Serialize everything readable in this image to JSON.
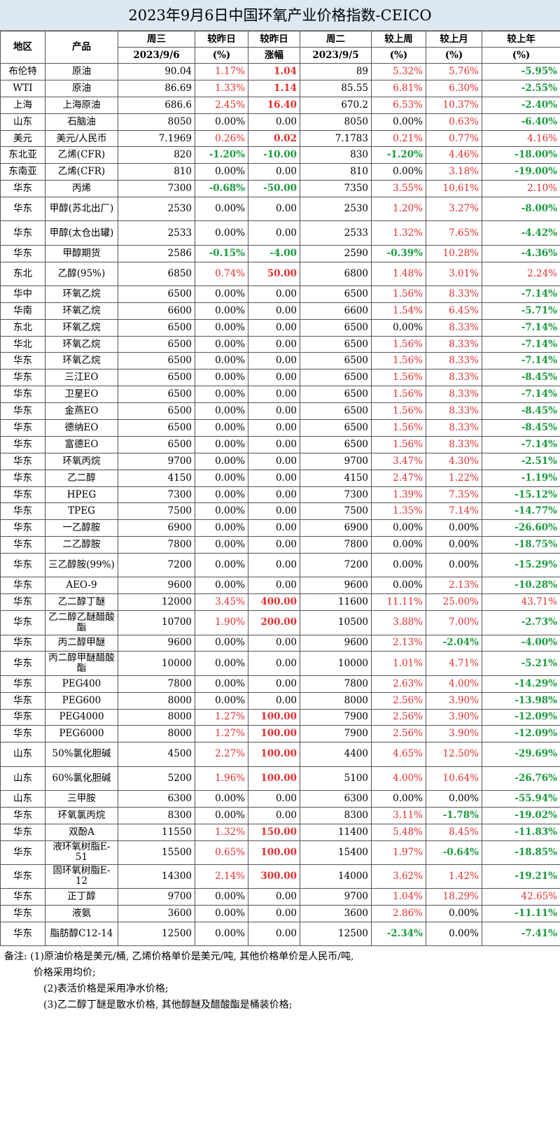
{
  "title": "2023年9月6日中国环氧产业价格指数-CEICO",
  "headers": {
    "region": "地区",
    "product": "产品",
    "wed": "周三",
    "wed_date": "2023/9/6",
    "chg_pct": "较昨日",
    "chg_pct_unit": "(%)",
    "chg_amt": "较昨日",
    "chg_amt_unit": "涨幅",
    "tue": "周二",
    "tue_date": "2023/9/5",
    "week": "较上周",
    "week_unit": "(%)",
    "month": "较上月",
    "month_unit": "(%)",
    "year": "较上年",
    "year_unit": "(%)"
  },
  "rows": [
    [
      "布伦特",
      "原油",
      "90.04",
      "1.17%",
      "1.04",
      "89",
      "5.32%",
      "5.76%",
      "-5.95%"
    ],
    [
      "WTI",
      "原油",
      "86.69",
      "1.33%",
      "1.14",
      "85.55",
      "6.81%",
      "6.30%",
      "-2.55%"
    ],
    [
      "上海",
      "上海原油",
      "686.6",
      "2.45%",
      "16.40",
      "670.2",
      "6.53%",
      "10.37%",
      "-2.40%"
    ],
    [
      "山东",
      "石脑油",
      "8050",
      "0.00%",
      "0.00",
      "8050",
      "0.00%",
      "0.63%",
      "-6.40%"
    ],
    [
      "美元",
      "美元/人民币",
      "7.1969",
      "0.26%",
      "0.02",
      "7.1783",
      "0.21%",
      "0.77%",
      "4.16%"
    ],
    [
      "东北亚",
      "乙烯(CFR)",
      "820",
      "-1.20%",
      "-10.00",
      "830",
      "-1.20%",
      "4.46%",
      "-18.00%"
    ],
    [
      "东南亚",
      "乙烯(CFR)",
      "810",
      "0.00%",
      "0.00",
      "810",
      "0.00%",
      "3.18%",
      "-19.00%"
    ],
    [
      "华东",
      "丙烯",
      "7300",
      "-0.68%",
      "-50.00",
      "7350",
      "3.55%",
      "10.61%",
      "2.10%"
    ],
    [
      "华东",
      "甲醇(苏北出厂)",
      "2530",
      "0.00%",
      "0.00",
      "2530",
      "1.20%",
      "3.27%",
      "-8.00%"
    ],
    [
      "华东",
      "甲醇(太仓出罐)",
      "2533",
      "0.00%",
      "0.00",
      "2533",
      "1.32%",
      "7.65%",
      "-4.42%"
    ],
    [
      "华东",
      "甲醇期货",
      "2586",
      "-0.15%",
      "-4.00",
      "2590",
      "-0.39%",
      "10.28%",
      "-4.36%"
    ],
    [
      "东北",
      "乙醇(95%)",
      "6850",
      "0.74%",
      "50.00",
      "6800",
      "1.48%",
      "3.01%",
      "2.24%"
    ],
    [
      "华中",
      "环氧乙烷",
      "6500",
      "0.00%",
      "0.00",
      "6500",
      "1.56%",
      "8.33%",
      "-7.14%"
    ],
    [
      "华南",
      "环氧乙烷",
      "6600",
      "0.00%",
      "0.00",
      "6600",
      "1.54%",
      "6.45%",
      "-5.71%"
    ],
    [
      "东北",
      "环氧乙烷",
      "6500",
      "0.00%",
      "0.00",
      "6500",
      "0.00%",
      "8.33%",
      "-7.14%"
    ],
    [
      "华北",
      "环氧乙烷",
      "6500",
      "0.00%",
      "0.00",
      "6500",
      "1.56%",
      "8.33%",
      "-7.14%"
    ],
    [
      "华东",
      "环氧乙烷",
      "6500",
      "0.00%",
      "0.00",
      "6500",
      "1.56%",
      "8.33%",
      "-7.14%"
    ],
    [
      "华东",
      "三江EO",
      "6500",
      "0.00%",
      "0.00",
      "6500",
      "1.56%",
      "8.33%",
      "-8.45%"
    ],
    [
      "华东",
      "卫星EO",
      "6500",
      "0.00%",
      "0.00",
      "6500",
      "1.56%",
      "8.33%",
      "-7.14%"
    ],
    [
      "华东",
      "金燕EO",
      "6500",
      "0.00%",
      "0.00",
      "6500",
      "1.56%",
      "8.33%",
      "-8.45%"
    ],
    [
      "华东",
      "德纳EO",
      "6500",
      "0.00%",
      "0.00",
      "6500",
      "1.56%",
      "8.33%",
      "-8.45%"
    ],
    [
      "华东",
      "富德EO",
      "6500",
      "0.00%",
      "0.00",
      "6500",
      "1.56%",
      "8.33%",
      "-7.14%"
    ],
    [
      "华东",
      "环氧丙烷",
      "9700",
      "0.00%",
      "0.00",
      "9700",
      "3.47%",
      "4.30%",
      "-2.51%"
    ],
    [
      "华东",
      "乙二醇",
      "4150",
      "0.00%",
      "0.00",
      "4150",
      "2.47%",
      "1.22%",
      "-1.19%"
    ],
    [
      "华东",
      "HPEG",
      "7300",
      "0.00%",
      "0.00",
      "7300",
      "1.39%",
      "7.35%",
      "-15.12%"
    ],
    [
      "华东",
      "TPEG",
      "7500",
      "0.00%",
      "0.00",
      "7500",
      "1.35%",
      "7.14%",
      "-14.77%"
    ],
    [
      "华东",
      "一乙醇胺",
      "6900",
      "0.00%",
      "0.00",
      "6900",
      "0.00%",
      "0.00%",
      "-26.60%"
    ],
    [
      "华东",
      "二乙醇胺",
      "7800",
      "0.00%",
      "0.00",
      "7800",
      "0.00%",
      "0.00%",
      "-18.75%"
    ],
    [
      "华东",
      "三乙醇胺(99%)",
      "7200",
      "0.00%",
      "0.00",
      "7200",
      "0.00%",
      "0.00%",
      "-15.29%"
    ],
    [
      "华东",
      "AEO-9",
      "9600",
      "0.00%",
      "0.00",
      "9600",
      "0.00%",
      "2.13%",
      "-10.28%"
    ],
    [
      "华东",
      "乙二醇丁醚",
      "12000",
      "3.45%",
      "400.00",
      "11600",
      "11.11%",
      "25.00%",
      "43.71%"
    ],
    [
      "华东",
      "乙二醇乙醚醋酸酯",
      "10700",
      "1.90%",
      "200.00",
      "10500",
      "3.88%",
      "7.00%",
      "-2.73%"
    ],
    [
      "华东",
      "丙二醇甲醚",
      "9600",
      "0.00%",
      "0.00",
      "9600",
      "2.13%",
      "-2.04%",
      "-4.00%"
    ],
    [
      "华东",
      "丙二醇甲醚醋酸酯",
      "10000",
      "0.00%",
      "0.00",
      "10000",
      "1.01%",
      "4.71%",
      "-5.21%"
    ],
    [
      "华东",
      "PEG400",
      "7800",
      "0.00%",
      "0.00",
      "7800",
      "2.63%",
      "4.00%",
      "-14.29%"
    ],
    [
      "华东",
      "PEG600",
      "8000",
      "0.00%",
      "0.00",
      "8000",
      "2.56%",
      "3.90%",
      "-13.98%"
    ],
    [
      "华东",
      "PEG4000",
      "8000",
      "1.27%",
      "100.00",
      "7900",
      "2.56%",
      "3.90%",
      "-12.09%"
    ],
    [
      "华东",
      "PEG6000",
      "8000",
      "1.27%",
      "100.00",
      "7900",
      "2.56%",
      "3.90%",
      "-12.09%"
    ],
    [
      "山东",
      "50%氯化胆碱",
      "4500",
      "2.27%",
      "100.00",
      "4400",
      "4.65%",
      "12.50%",
      "-29.69%"
    ],
    [
      "山东",
      "60%氯化胆碱",
      "5200",
      "1.96%",
      "100.00",
      "5100",
      "4.00%",
      "10.64%",
      "-26.76%"
    ],
    [
      "山东",
      "三甲胺",
      "6300",
      "0.00%",
      "0.00",
      "6300",
      "0.00%",
      "0.00%",
      "-55.94%"
    ],
    [
      "华东",
      "环氧氯丙烷",
      "8300",
      "0.00%",
      "0.00",
      "8300",
      "3.11%",
      "-1.78%",
      "-19.02%"
    ],
    [
      "华东",
      "双酚A",
      "11550",
      "1.32%",
      "150.00",
      "11400",
      "5.48%",
      "8.45%",
      "-11.83%"
    ],
    [
      "华东",
      "液环氧树脂E-51",
      "15500",
      "0.65%",
      "100.00",
      "15400",
      "1.97%",
      "-0.64%",
      "-18.85%"
    ],
    [
      "华东",
      "固环氧树脂E-12",
      "14300",
      "2.14%",
      "300.00",
      "14000",
      "3.62%",
      "1.42%",
      "-19.21%"
    ],
    [
      "华东",
      "正丁醇",
      "9700",
      "0.00%",
      "0.00",
      "9700",
      "1.04%",
      "18.29%",
      "42.65%"
    ],
    [
      "华东",
      "液氨",
      "3600",
      "0.00%",
      "0.00",
      "3600",
      "2.86%",
      "0.00%",
      "-11.11%"
    ],
    [
      "华东",
      "脂肪醇C12-14",
      "12500",
      "0.00%",
      "0.00",
      "12500",
      "-2.34%",
      "0.00%",
      "-7.41%"
    ]
  ],
  "notes": [
    "备注: (1)原油价格是美元/桶, 乙烯价格单价是美元/吨, 其他价格单价是人民币/吨,",
    "价格采用均价;",
    "(2)表活价格是采用净水价格;",
    "(3)乙二醇丁醚是散水价格, 其他醇醚及醋酸酯是桶装价格;"
  ]
}
